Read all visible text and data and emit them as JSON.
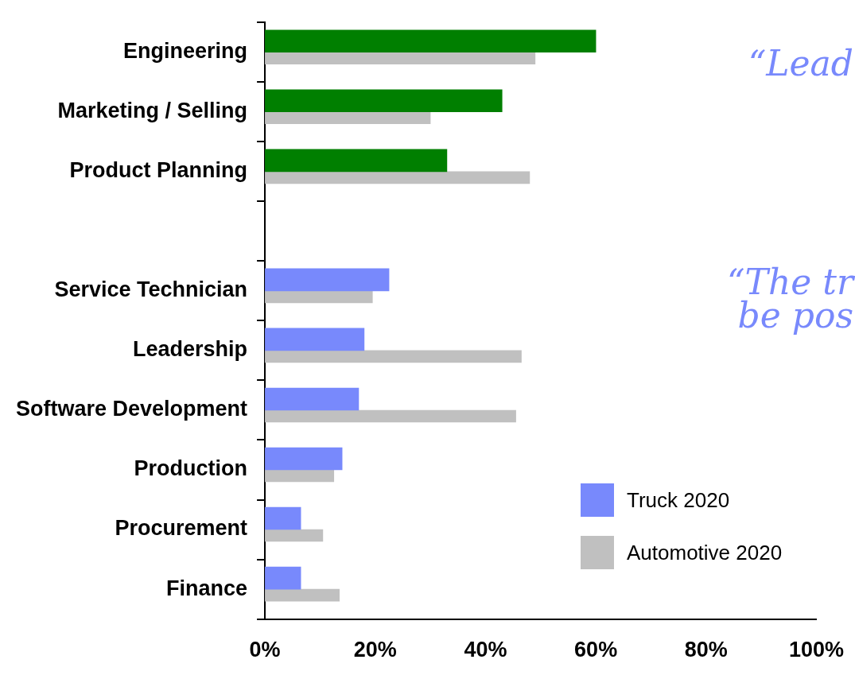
{
  "chart_data": {
    "type": "bar",
    "orientation": "horizontal",
    "categories": [
      "Engineering",
      "Marketing / Selling",
      "Product Planning",
      null,
      "Service Technician",
      "Leadership",
      "Software Development",
      "Production",
      "Procurement",
      "Finance"
    ],
    "series": [
      {
        "name": "Truck 2020",
        "color": "#7889fc",
        "colors": [
          "#007f00",
          "#007f00",
          "#007f00",
          null,
          "#7889fc",
          "#7889fc",
          "#7889fc",
          "#7889fc",
          "#7889fc",
          "#7889fc"
        ],
        "values": [
          60,
          43,
          33,
          null,
          22.5,
          18,
          17,
          14,
          6.5,
          6.5
        ]
      },
      {
        "name": "Automotive 2020",
        "color": "#c0c0c0",
        "values": [
          49,
          30,
          48,
          null,
          19.5,
          46.5,
          45.5,
          12.5,
          10.5,
          13.5
        ]
      }
    ],
    "xlim": [
      0,
      100
    ],
    "xticks": [
      {
        "value": 0,
        "label": "0%"
      },
      {
        "value": 20,
        "label": "20%"
      },
      {
        "value": 40,
        "label": "40%"
      },
      {
        "value": 60,
        "label": "60%"
      },
      {
        "value": 80,
        "label": "80%"
      },
      {
        "value": 100,
        "label": "100%"
      }
    ],
    "grid": false,
    "legend": "bottom right",
    "annotations": [
      "“Lead",
      "“The tr",
      "be pos"
    ]
  }
}
